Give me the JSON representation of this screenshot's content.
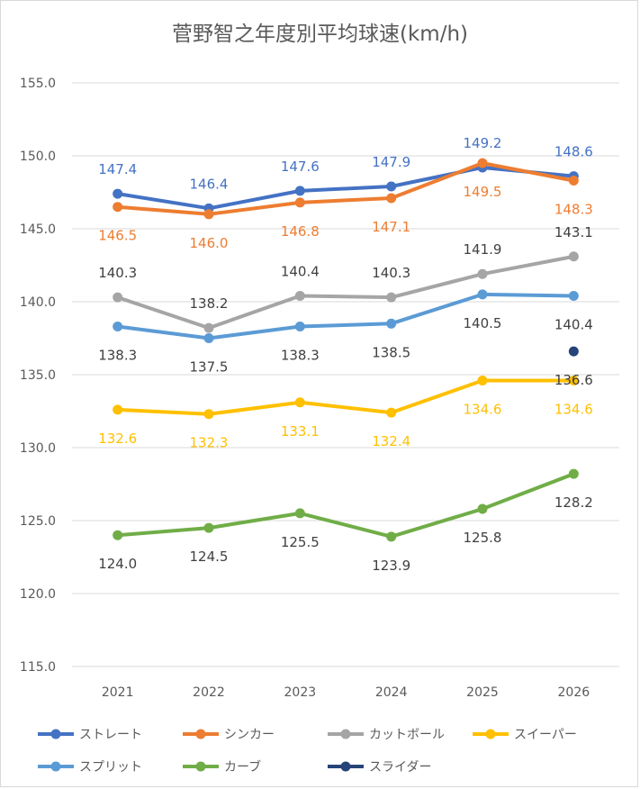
{
  "chart_data": {
    "type": "line",
    "title": "菅野智之年度別平均球速(km/h)",
    "xlabel": "",
    "ylabel": "",
    "categories": [
      "2021",
      "2022",
      "2023",
      "2024",
      "2025",
      "2026"
    ],
    "ylim": [
      115,
      155
    ],
    "yticks": [
      "115.0",
      "120.0",
      "125.0",
      "130.0",
      "135.0",
      "140.0",
      "145.0",
      "150.0",
      "155.0"
    ],
    "grid": true,
    "legend_position": "bottom",
    "series": [
      {
        "name": "ストレート",
        "color": "#4472C4",
        "labelColor": "#4472C4",
        "values": [
          147.4,
          146.4,
          147.6,
          147.9,
          149.2,
          148.6
        ],
        "labels": [
          "147.4",
          "146.4",
          "147.6",
          "147.9",
          "149.2",
          "148.6"
        ],
        "labelPos": [
          "above",
          "above",
          "above",
          "above",
          "above",
          "above"
        ]
      },
      {
        "name": "シンカー",
        "color": "#ED7D31",
        "labelColor": "#ED7D31",
        "values": [
          146.5,
          146.0,
          146.8,
          147.1,
          149.5,
          148.3
        ],
        "labels": [
          "146.5",
          "146.0",
          "146.8",
          "147.1",
          "149.5",
          "148.3"
        ],
        "labelPos": [
          "below",
          "below",
          "below",
          "below",
          "below",
          "below"
        ]
      },
      {
        "name": "カットボール",
        "color": "#A5A5A5",
        "labelColor": "#404040",
        "values": [
          140.3,
          138.2,
          140.4,
          140.3,
          141.9,
          143.1
        ],
        "labels": [
          "140.3",
          "138.2",
          "140.4",
          "140.3",
          "141.9",
          "143.1"
        ],
        "labelPos": [
          "above",
          "above",
          "above",
          "above",
          "above",
          "above"
        ]
      },
      {
        "name": "スイーパー",
        "color": "#FFC000",
        "labelColor": "#FFC000",
        "values": [
          132.6,
          132.3,
          133.1,
          132.4,
          134.6,
          134.6
        ],
        "labels": [
          "132.6",
          "132.3",
          "133.1",
          "132.4",
          "134.6",
          "134.6"
        ],
        "labelPos": [
          "below",
          "below",
          "below",
          "below",
          "below",
          "below"
        ]
      },
      {
        "name": "スプリット",
        "color": "#5B9BD5",
        "labelColor": "#404040",
        "values": [
          138.3,
          137.5,
          138.3,
          138.5,
          140.5,
          140.4
        ],
        "labels": [
          "138.3",
          "137.5",
          "138.3",
          "138.5",
          "140.5",
          "140.4"
        ],
        "labelPos": [
          "below",
          "below",
          "below",
          "below",
          "below",
          "below"
        ]
      },
      {
        "name": "カーブ",
        "color": "#70AD47",
        "labelColor": "#404040",
        "values": [
          124.0,
          124.5,
          125.5,
          123.9,
          125.8,
          128.2
        ],
        "labels": [
          "124.0",
          "124.5",
          "125.5",
          "123.9",
          "125.8",
          "128.2"
        ],
        "labelPos": [
          "below",
          "below",
          "below",
          "below",
          "below",
          "below"
        ]
      },
      {
        "name": "スライダー",
        "color": "#264478",
        "labelColor": "#404040",
        "values": [
          null,
          null,
          null,
          null,
          null,
          136.6
        ],
        "labels": [
          null,
          null,
          null,
          null,
          null,
          "136.6"
        ],
        "labelPos": [
          "below",
          "below",
          "below",
          "below",
          "below",
          "below"
        ]
      }
    ]
  }
}
